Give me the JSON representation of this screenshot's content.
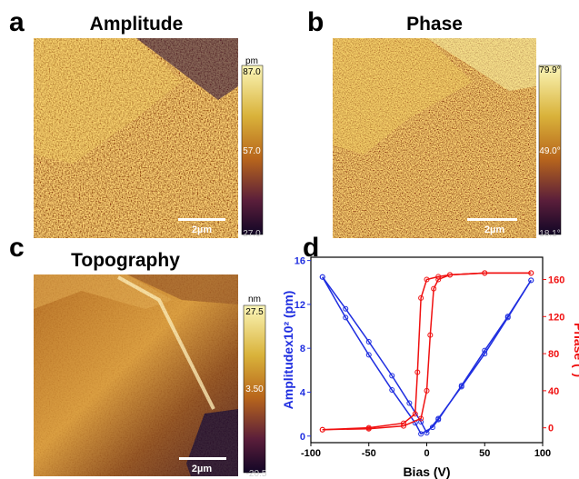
{
  "panels": [
    {
      "letter": "a",
      "title": "Amplitude",
      "colorbar": {
        "unit": "pm",
        "labels": [
          "87.0",
          "57.0",
          "27.0"
        ]
      },
      "scale_bar": "2µm"
    },
    {
      "letter": "b",
      "title": "Phase",
      "colorbar": {
        "labels": [
          "79.9°",
          "49.0°",
          "18.1°"
        ]
      },
      "scale_bar": "2µm"
    },
    {
      "letter": "c",
      "title": "Topography",
      "colorbar": {
        "unit": "nm",
        "labels": [
          "27.5",
          "3.50",
          "-20.5"
        ]
      },
      "scale_bar": "2µm"
    }
  ],
  "chart_panel": {
    "letter": "d"
  },
  "chart_data": {
    "type": "scatter",
    "x_label": "Bias (V)",
    "y_label": "Amplitudex10² (pm)",
    "y2_label": "Phase (°)",
    "xlim": [
      -100,
      100
    ],
    "xticks": [
      -100,
      -50,
      0,
      50,
      100
    ],
    "ylim": [
      -0.6,
      16.3
    ],
    "yticks": [
      0,
      4,
      8,
      12,
      16
    ],
    "y2lim": [
      -16,
      184
    ],
    "y2ticks": [
      0,
      40,
      80,
      120,
      160
    ],
    "series": [
      {
        "color": "#1f2ee0",
        "x": [
          -90,
          -70,
          -50,
          -30,
          -15,
          -5,
          0,
          10,
          30,
          50,
          70,
          90
        ],
        "values": [
          14.5,
          11.6,
          8.6,
          5.5,
          3.0,
          1.3,
          0.3,
          1.6,
          4.5,
          7.5,
          10.8,
          14.2
        ]
      },
      {
        "color": "#1f2ee0",
        "x": [
          90,
          70,
          50,
          30,
          10,
          5,
          -5,
          -10,
          -30,
          -50,
          -70,
          -90
        ],
        "values": [
          14.2,
          10.9,
          7.8,
          4.6,
          1.5,
          0.8,
          0.2,
          1.2,
          4.2,
          7.4,
          10.8,
          14.5
        ]
      },
      {
        "color": "#f01010",
        "axis": "y2",
        "x": [
          -90,
          -50,
          -20,
          -5,
          0,
          3,
          6,
          10,
          20,
          50,
          90
        ],
        "values": [
          -2,
          -1,
          2,
          10,
          40,
          100,
          150,
          160,
          165,
          167,
          167
        ]
      },
      {
        "color": "#f01010",
        "axis": "y2",
        "x": [
          90,
          50,
          20,
          10,
          0,
          -5,
          -8,
          -10,
          -20,
          -50,
          -90
        ],
        "values": [
          167,
          167,
          165,
          163,
          160,
          140,
          60,
          15,
          5,
          0,
          -2
        ]
      }
    ]
  }
}
